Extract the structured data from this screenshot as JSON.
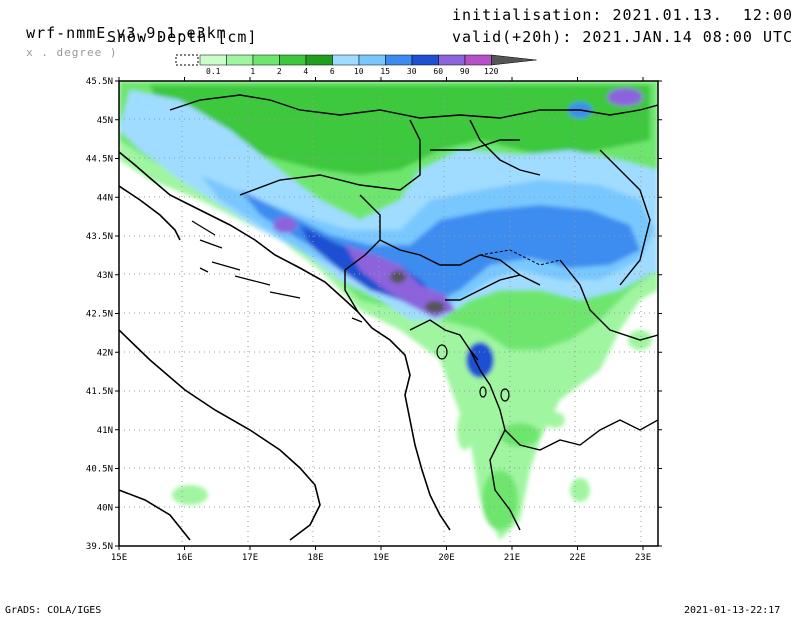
{
  "header": {
    "model": "wrf-nmmE_v3.9.1-e3km",
    "resolution_note": "x . degree )",
    "field": "Snow Depth [cm]",
    "init": "initialisation: 2021.01.13.  12:00 UTC",
    "valid": "valid(+20h): 2021.JAN.14 08:00 UTC"
  },
  "legend": {
    "levels": [
      "0.1",
      "1",
      "2",
      "4",
      "6",
      "10",
      "15",
      "30",
      "60",
      "90",
      "120"
    ],
    "colors": [
      "#c8ffc8",
      "#a0f5a0",
      "#6ee66e",
      "#3cc83c",
      "#1ea01e",
      "#a0dcff",
      "#78c8ff",
      "#3c8cf0",
      "#1e50d2",
      "#8c64dc",
      "#b450c8",
      "#555555"
    ]
  },
  "map": {
    "lat_labels": [
      "45.5N",
      "45N",
      "44.5N",
      "44N",
      "43.5N",
      "43N",
      "42.5N",
      "42N",
      "41.5N",
      "41N",
      "40.5N",
      "40N",
      "39.5N"
    ],
    "lon_labels": [
      "15E",
      "16E",
      "17E",
      "18E",
      "19E",
      "20E",
      "21E",
      "22E",
      "23E"
    ]
  },
  "footer": {
    "left": "GrADS: COLA/IGES",
    "right": "2021-01-13-22:17"
  }
}
